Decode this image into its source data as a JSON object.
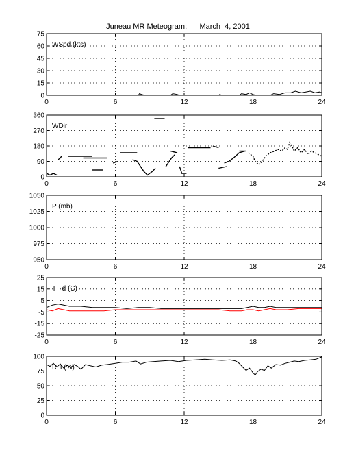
{
  "title": "Juneau MR Meteogram:      March  4, 2001",
  "chart_data": [
    {
      "type": "line",
      "label": "WSpd (kts)",
      "xlim": [
        0,
        24
      ],
      "ylim": [
        0,
        75
      ],
      "xticks": [
        0,
        6,
        12,
        18,
        24
      ],
      "yticks": [
        0,
        15,
        30,
        45,
        60,
        75
      ],
      "grid": true,
      "series": [
        {
          "color": "#000000",
          "segments": [
            [
              [
                0,
                0
              ],
              [
                8,
                0
              ],
              [
                8.1,
                2
              ],
              [
                8.3,
                1
              ],
              [
                8.6,
                0
              ],
              [
                10.8,
                0
              ],
              [
                11,
                2
              ],
              [
                11.4,
                1
              ],
              [
                11.6,
                0
              ],
              [
                15,
                0
              ],
              [
                15.1,
                1
              ],
              [
                15.3,
                0
              ],
              [
                16.8,
                0
              ],
              [
                17,
                2
              ],
              [
                17.4,
                1
              ],
              [
                17.7,
                3
              ],
              [
                18,
                1
              ],
              [
                18.3,
                0
              ],
              [
                19.5,
                0
              ],
              [
                19.8,
                2
              ],
              [
                20.3,
                1
              ],
              [
                20.8,
                3
              ],
              [
                21.3,
                3
              ],
              [
                21.7,
                5
              ],
              [
                22.2,
                3
              ],
              [
                22.6,
                4
              ],
              [
                23,
                5
              ],
              [
                23.4,
                3
              ],
              [
                23.8,
                4
              ],
              [
                24,
                3
              ]
            ]
          ]
        }
      ]
    },
    {
      "type": "scatter",
      "label": "WDir",
      "xlim": [
        0,
        24
      ],
      "ylim": [
        0,
        360
      ],
      "xticks": [
        0,
        6,
        12,
        18,
        24
      ],
      "yticks": [
        0,
        90,
        180,
        270,
        360
      ],
      "grid": true,
      "series": [
        {
          "color": "#000000",
          "segments": [
            [
              [
                0,
                20
              ],
              [
                0.3,
                10
              ],
              [
                0.6,
                20
              ],
              [
                0.9,
                10
              ]
            ],
            [
              [
                1,
                100
              ],
              [
                1.2,
                110
              ],
              [
                1.3,
                120
              ]
            ],
            [
              [
                1.9,
                120
              ],
              [
                4,
                120
              ]
            ],
            [
              [
                4,
                40
              ],
              [
                4.9,
                40
              ]
            ],
            [
              [
                3.2,
                110
              ],
              [
                5.3,
                110
              ]
            ],
            [
              [
                5.8,
                80
              ],
              [
                6.2,
                90
              ]
            ],
            [
              [
                6.4,
                140
              ],
              [
                7.9,
                140
              ]
            ],
            [
              [
                7.5,
                100
              ],
              [
                7.9,
                90
              ],
              [
                8.2,
                60
              ],
              [
                8.5,
                30
              ],
              [
                8.8,
                10
              ],
              [
                9.2,
                30
              ],
              [
                9.5,
                50
              ]
            ],
            [
              [
                9.4,
                340
              ],
              [
                10.3,
                340
              ]
            ],
            [
              [
                10.4,
                60
              ],
              [
                10.7,
                90
              ],
              [
                10.9,
                110
              ],
              [
                11.2,
                130
              ]
            ],
            [
              [
                10.8,
                150
              ],
              [
                11.4,
                140
              ]
            ],
            [
              [
                11.6,
                60
              ],
              [
                11.8,
                20
              ],
              [
                12.2,
                20
              ]
            ],
            [
              [
                12.3,
                170
              ],
              [
                14.3,
                170
              ]
            ],
            [
              [
                14.5,
                180
              ],
              [
                15,
                170
              ]
            ],
            [
              [
                15,
                50
              ],
              [
                15.7,
                60
              ]
            ],
            [
              [
                15.5,
                80
              ],
              [
                15.9,
                90
              ],
              [
                16.3,
                110
              ],
              [
                16.8,
                140
              ],
              [
                17.3,
                150
              ]
            ],
            [
              [
                16.8,
                150
              ],
              [
                17.4,
                150
              ]
            ],
            [
              [
                17.6,
                140
              ],
              [
                18,
                120
              ],
              [
                18.2,
                90
              ],
              [
                18.5,
                70
              ],
              [
                18.8,
                90
              ],
              [
                19.1,
                120
              ],
              [
                19.5,
                140
              ],
              [
                19.9,
                150
              ],
              [
                20.2,
                160
              ],
              [
                20.5,
                150
              ],
              [
                20.8,
                170
              ],
              [
                21,
                160
              ],
              [
                21.2,
                200
              ],
              [
                21.4,
                180
              ],
              [
                21.6,
                150
              ],
              [
                21.9,
                170
              ],
              [
                22.2,
                140
              ],
              [
                22.5,
                160
              ],
              [
                22.8,
                130
              ],
              [
                23.1,
                150
              ],
              [
                23.4,
                140
              ],
              [
                23.7,
                130
              ],
              [
                24,
                120
              ]
            ]
          ]
        }
      ]
    },
    {
      "type": "line",
      "label": "P (mb)",
      "xlim": [
        0,
        24
      ],
      "ylim": [
        950,
        1050
      ],
      "xticks": [
        0,
        6,
        12,
        18,
        24
      ],
      "yticks": [
        950,
        975,
        1000,
        1025,
        1050
      ],
      "grid": true,
      "series": []
    },
    {
      "type": "line",
      "label": "T Td (C)",
      "xlim": [
        0,
        24
      ],
      "ylim": [
        -25,
        25
      ],
      "xticks": [
        0,
        6,
        12,
        18,
        24
      ],
      "yticks": [
        -25,
        -15,
        -5,
        5,
        15,
        25
      ],
      "grid": true,
      "series": [
        {
          "color": "#000000",
          "segments": [
            [
              [
                0,
                -1
              ],
              [
                0.5,
                1
              ],
              [
                1,
                2
              ],
              [
                1.5,
                1
              ],
              [
                2,
                0
              ],
              [
                3,
                0
              ],
              [
                4,
                -1
              ],
              [
                5,
                -1
              ],
              [
                6,
                -1
              ],
              [
                7,
                -2
              ],
              [
                8,
                -1
              ],
              [
                9,
                -1
              ],
              [
                10,
                -2
              ],
              [
                11,
                -2
              ],
              [
                12,
                -2
              ],
              [
                13,
                -2
              ],
              [
                14,
                -2
              ],
              [
                15,
                -2
              ],
              [
                16,
                -2
              ],
              [
                17,
                -2
              ],
              [
                17.5,
                -1
              ],
              [
                18,
                0
              ],
              [
                18.5,
                -1
              ],
              [
                19,
                -1
              ],
              [
                19.5,
                0
              ],
              [
                20,
                -1
              ],
              [
                21,
                -1
              ],
              [
                22,
                -1
              ],
              [
                23,
                -1
              ],
              [
                24,
                -1
              ]
            ]
          ]
        },
        {
          "color": "#ff0000",
          "segments": [
            [
              [
                0,
                -3
              ],
              [
                0.5,
                -4
              ],
              [
                1,
                -2
              ],
              [
                1.5,
                -3
              ],
              [
                2,
                -4
              ],
              [
                3,
                -4
              ],
              [
                4,
                -4
              ],
              [
                5,
                -4
              ],
              [
                6,
                -3
              ],
              [
                7,
                -3
              ],
              [
                8,
                -3
              ],
              [
                9,
                -3
              ],
              [
                10,
                -3
              ],
              [
                11,
                -3
              ],
              [
                12,
                -3
              ],
              [
                13,
                -3
              ],
              [
                14,
                -3
              ],
              [
                15,
                -3
              ],
              [
                16,
                -4
              ],
              [
                17,
                -4
              ],
              [
                17.5,
                -3
              ],
              [
                18,
                -3
              ],
              [
                18.5,
                -4
              ],
              [
                19,
                -3
              ],
              [
                19.5,
                -2
              ],
              [
                20,
                -3
              ],
              [
                21,
                -3
              ],
              [
                22,
                -2
              ],
              [
                23,
                -2
              ],
              [
                24,
                -2
              ]
            ]
          ]
        }
      ]
    },
    {
      "type": "line",
      "label": "RH (%)",
      "xlim": [
        0,
        24
      ],
      "ylim": [
        0,
        100
      ],
      "xticks": [
        0,
        6,
        12,
        18,
        24
      ],
      "yticks": [
        0,
        25,
        50,
        75,
        100
      ],
      "grid": true,
      "series": [
        {
          "color": "#000000",
          "segments": [
            [
              [
                0,
                86
              ],
              [
                0.3,
                83
              ],
              [
                0.6,
                88
              ],
              [
                0.9,
                82
              ],
              [
                1.2,
                87
              ],
              [
                1.5,
                80
              ],
              [
                1.8,
                85
              ],
              [
                2.1,
                81
              ],
              [
                2.4,
                86
              ],
              [
                2.7,
                83
              ],
              [
                3,
                78
              ],
              [
                3.4,
                86
              ],
              [
                3.8,
                84
              ],
              [
                4.3,
                82
              ],
              [
                4.8,
                85
              ],
              [
                5.3,
                86
              ],
              [
                6,
                88
              ],
              [
                6.6,
                90
              ],
              [
                7.2,
                90
              ],
              [
                7.8,
                92
              ],
              [
                8.2,
                87
              ],
              [
                8.7,
                90
              ],
              [
                9.3,
                91
              ],
              [
                10,
                92
              ],
              [
                10.8,
                93
              ],
              [
                11.5,
                91
              ],
              [
                12.2,
                93
              ],
              [
                13,
                94
              ],
              [
                13.8,
                95
              ],
              [
                14.5,
                94
              ],
              [
                15.3,
                93
              ],
              [
                16,
                94
              ],
              [
                16.5,
                92
              ],
              [
                16.8,
                88
              ],
              [
                17.1,
                82
              ],
              [
                17.4,
                76
              ],
              [
                17.7,
                80
              ],
              [
                18,
                72
              ],
              [
                18.2,
                68
              ],
              [
                18.4,
                74
              ],
              [
                18.7,
                78
              ],
              [
                19,
                76
              ],
              [
                19.3,
                84
              ],
              [
                19.6,
                80
              ],
              [
                20,
                86
              ],
              [
                20.4,
                85
              ],
              [
                20.8,
                88
              ],
              [
                21.2,
                90
              ],
              [
                21.6,
                92
              ],
              [
                22,
                91
              ],
              [
                22.5,
                93
              ],
              [
                23,
                94
              ],
              [
                23.5,
                95
              ],
              [
                24,
                99
              ]
            ]
          ]
        }
      ]
    }
  ]
}
